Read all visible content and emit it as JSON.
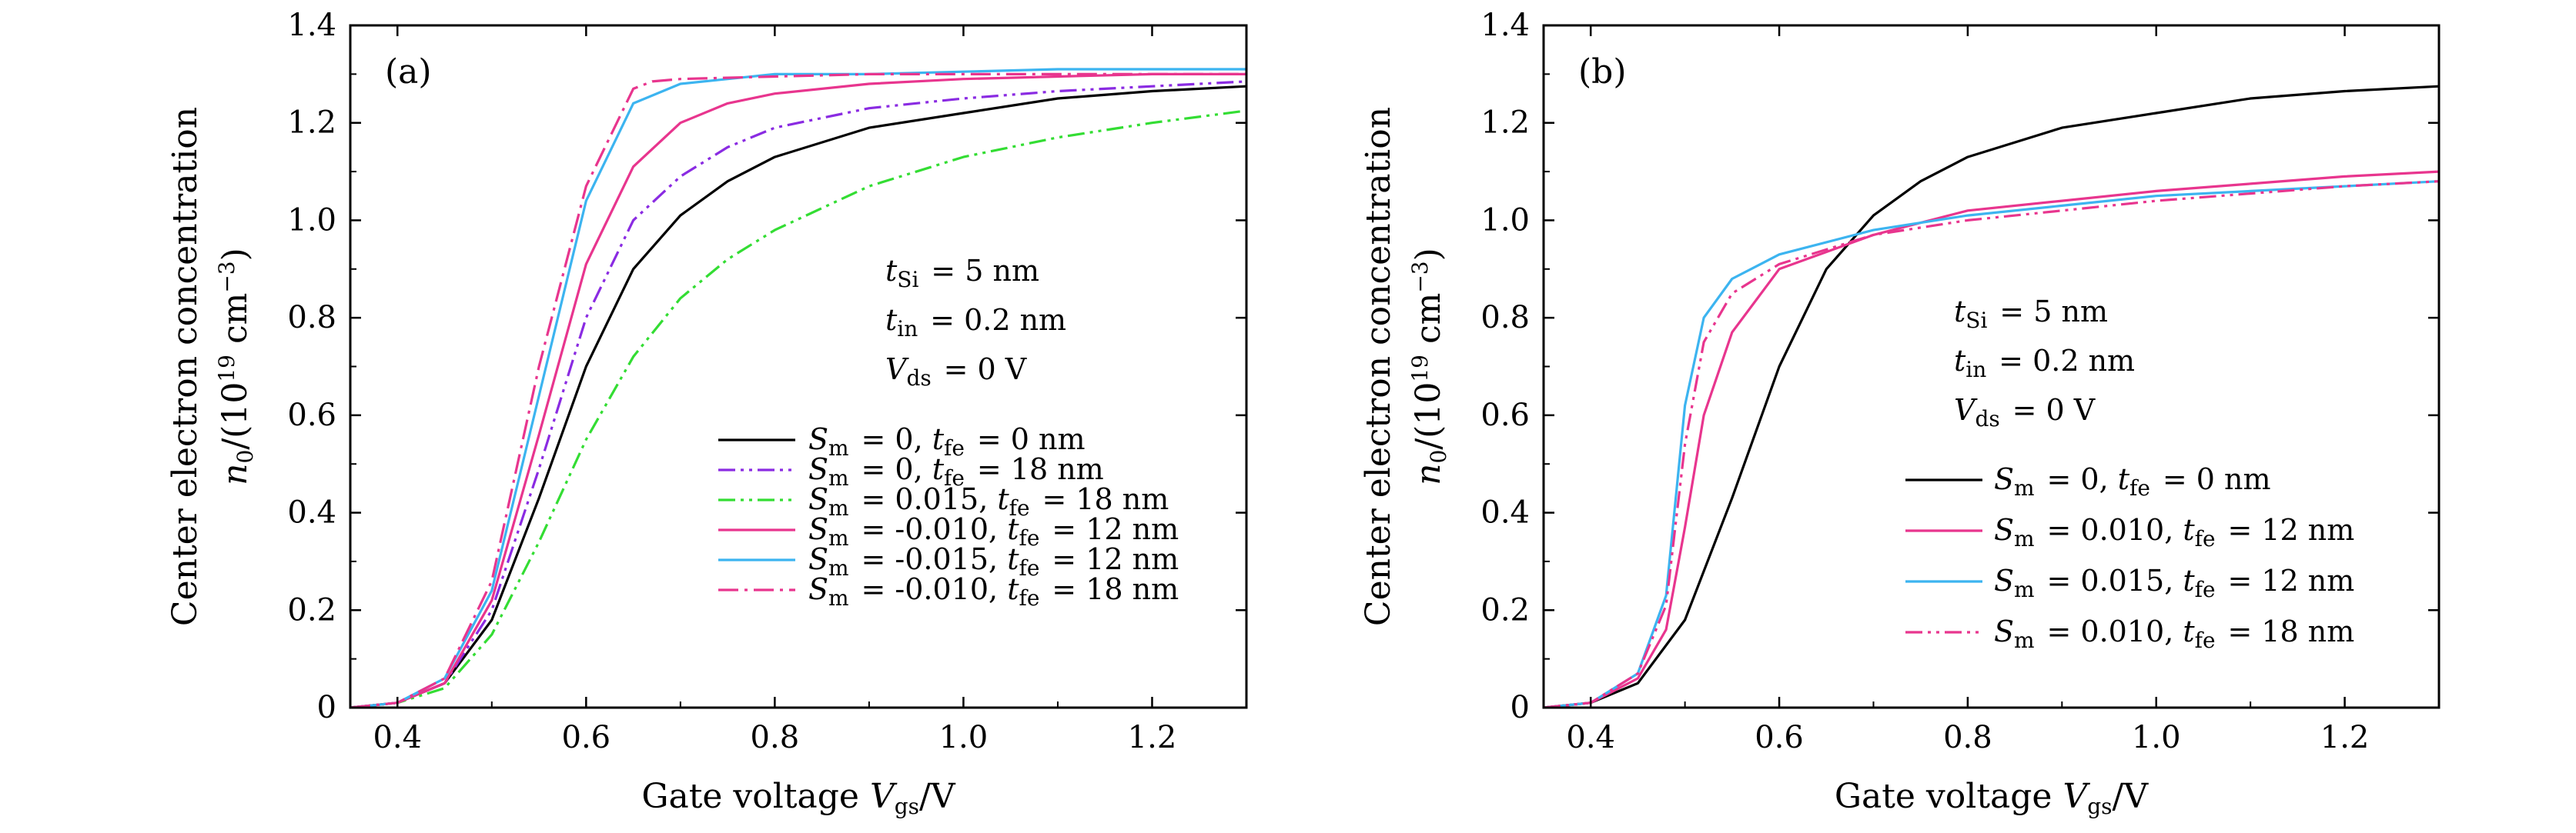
{
  "chart_data": [
    {
      "type": "line",
      "panel_label": "(a)",
      "xlabel": "Gate voltage V_gs/V",
      "ylabel_line1": "Center electron concentration",
      "ylabel_line2": "n0/(10^19 cm^-3)",
      "xlim": [
        0.35,
        1.3
      ],
      "ylim": [
        0,
        1.4
      ],
      "xticks": [
        "0.4",
        "0.6",
        "0.8",
        "1.0",
        "1.2"
      ],
      "yticks": [
        "0",
        "0.2",
        "0.4",
        "0.6",
        "0.8",
        "1.0",
        "1.2",
        "1.4"
      ],
      "annotations": [
        "t_Si = 5 nm",
        "t_in = 0.2 nm",
        "V_ds = 0 V"
      ],
      "series": [
        {
          "name": "S_m = 0, t_fe = 0 nm",
          "color": "#000000",
          "dash": "solid",
          "x": [
            0.35,
            0.4,
            0.45,
            0.5,
            0.55,
            0.6,
            0.65,
            0.7,
            0.75,
            0.8,
            0.9,
            1.0,
            1.1,
            1.2,
            1.3
          ],
          "y": [
            0.0,
            0.01,
            0.05,
            0.18,
            0.43,
            0.7,
            0.9,
            1.01,
            1.08,
            1.13,
            1.19,
            1.22,
            1.25,
            1.265,
            1.275
          ]
        },
        {
          "name": "S_m = 0, t_fe = 18 nm",
          "color": "#8a2be2",
          "dash": "dashdotdot",
          "x": [
            0.35,
            0.4,
            0.45,
            0.5,
            0.55,
            0.6,
            0.65,
            0.7,
            0.75,
            0.8,
            0.9,
            1.0,
            1.1,
            1.2,
            1.3
          ],
          "y": [
            0.0,
            0.01,
            0.05,
            0.2,
            0.49,
            0.8,
            1.0,
            1.09,
            1.15,
            1.19,
            1.23,
            1.25,
            1.265,
            1.275,
            1.285
          ]
        },
        {
          "name": "S_m = 0.015, t_fe = 18 nm",
          "color": "#33dd33",
          "dash": "dashdotdot",
          "x": [
            0.35,
            0.4,
            0.45,
            0.5,
            0.55,
            0.6,
            0.65,
            0.7,
            0.75,
            0.8,
            0.9,
            1.0,
            1.1,
            1.2,
            1.3
          ],
          "y": [
            0.0,
            0.01,
            0.04,
            0.15,
            0.34,
            0.55,
            0.72,
            0.84,
            0.92,
            0.98,
            1.07,
            1.13,
            1.17,
            1.2,
            1.225
          ]
        },
        {
          "name": "S_m = -0.010, t_fe = 12 nm",
          "color": "#e8358e",
          "dash": "solid",
          "x": [
            0.35,
            0.4,
            0.45,
            0.5,
            0.55,
            0.6,
            0.65,
            0.7,
            0.75,
            0.8,
            0.9,
            1.0,
            1.1,
            1.2,
            1.3
          ],
          "y": [
            0.0,
            0.01,
            0.05,
            0.22,
            0.56,
            0.91,
            1.11,
            1.2,
            1.24,
            1.26,
            1.28,
            1.29,
            1.295,
            1.3,
            1.3
          ]
        },
        {
          "name": "S_m = -0.015, t_fe = 12 nm",
          "color": "#3cb4f0",
          "dash": "solid",
          "x": [
            0.35,
            0.4,
            0.45,
            0.5,
            0.55,
            0.6,
            0.65,
            0.7,
            0.75,
            0.8,
            0.9,
            1.0,
            1.1,
            1.2,
            1.3
          ],
          "y": [
            0.0,
            0.01,
            0.06,
            0.24,
            0.64,
            1.04,
            1.24,
            1.28,
            1.29,
            1.3,
            1.3,
            1.305,
            1.31,
            1.31,
            1.31
          ]
        },
        {
          "name": "S_m = -0.010, t_fe = 18 nm",
          "color": "#e8358e",
          "dash": "dashdot",
          "x": [
            0.35,
            0.4,
            0.45,
            0.5,
            0.55,
            0.6,
            0.65,
            0.67,
            0.7,
            0.8,
            0.9,
            1.0,
            1.1,
            1.2,
            1.3
          ],
          "y": [
            0.0,
            0.01,
            0.06,
            0.26,
            0.7,
            1.07,
            1.27,
            1.285,
            1.29,
            1.295,
            1.3,
            1.3,
            1.3,
            1.3,
            1.3
          ]
        }
      ]
    },
    {
      "type": "line",
      "panel_label": "(b)",
      "xlabel": "Gate voltage V_gs/V",
      "ylabel_line1": "Center electron concentration",
      "ylabel_line2": "n0/(10^19 cm^-3)",
      "xlim": [
        0.35,
        1.3
      ],
      "ylim": [
        0,
        1.4
      ],
      "xticks": [
        "0.4",
        "0.6",
        "0.8",
        "1.0",
        "1.2"
      ],
      "yticks": [
        "0",
        "0.2",
        "0.4",
        "0.6",
        "0.8",
        "1.0",
        "1.2",
        "1.4"
      ],
      "annotations": [
        "t_Si = 5 nm",
        "t_in = 0.2 nm",
        "V_ds = 0 V"
      ],
      "series": [
        {
          "name": "S_m = 0, t_fe = 0 nm",
          "color": "#000000",
          "dash": "solid",
          "x": [
            0.35,
            0.4,
            0.45,
            0.5,
            0.55,
            0.6,
            0.65,
            0.7,
            0.75,
            0.8,
            0.9,
            1.0,
            1.1,
            1.2,
            1.3
          ],
          "y": [
            0.0,
            0.01,
            0.05,
            0.18,
            0.43,
            0.7,
            0.9,
            1.01,
            1.08,
            1.13,
            1.19,
            1.22,
            1.25,
            1.265,
            1.275
          ]
        },
        {
          "name": "S_m = 0.010, t_fe = 12 nm",
          "color": "#e8358e",
          "dash": "solid",
          "x": [
            0.35,
            0.4,
            0.45,
            0.48,
            0.5,
            0.52,
            0.55,
            0.6,
            0.7,
            0.8,
            0.9,
            1.0,
            1.1,
            1.2,
            1.3
          ],
          "y": [
            0.0,
            0.01,
            0.06,
            0.16,
            0.37,
            0.6,
            0.77,
            0.9,
            0.97,
            1.02,
            1.04,
            1.06,
            1.075,
            1.09,
            1.1
          ]
        },
        {
          "name": "S_m = 0.015, t_fe = 12 nm",
          "color": "#3cb4f0",
          "dash": "solid",
          "x": [
            0.35,
            0.4,
            0.45,
            0.48,
            0.5,
            0.52,
            0.55,
            0.6,
            0.7,
            0.8,
            0.9,
            1.0,
            1.1,
            1.2,
            1.3
          ],
          "y": [
            0.0,
            0.01,
            0.07,
            0.23,
            0.62,
            0.8,
            0.88,
            0.93,
            0.98,
            1.01,
            1.03,
            1.05,
            1.06,
            1.07,
            1.08
          ]
        },
        {
          "name": "S_m = 0.010, t_fe = 18 nm",
          "color": "#e8358e",
          "dash": "dashdotdot",
          "x": [
            0.35,
            0.4,
            0.45,
            0.48,
            0.5,
            0.52,
            0.55,
            0.6,
            0.7,
            0.8,
            0.9,
            1.0,
            1.1,
            1.2,
            1.3
          ],
          "y": [
            0.0,
            0.01,
            0.07,
            0.21,
            0.54,
            0.75,
            0.85,
            0.91,
            0.97,
            1.0,
            1.02,
            1.04,
            1.055,
            1.07,
            1.08
          ]
        }
      ]
    }
  ]
}
